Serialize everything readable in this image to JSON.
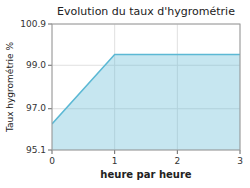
{
  "chart_data": {
    "type": "area",
    "title": "Evolution du taux d'hygrométrie",
    "x_label": "heure par heure",
    "y_label": "Taux hygrométrie %",
    "x": [
      0,
      1,
      3
    ],
    "values": [
      96.3,
      99.5,
      99.5
    ],
    "color": "#5bb8d4",
    "xlim": [
      0,
      3
    ],
    "ylim": [
      95.1,
      100.9
    ],
    "xticks": [
      0,
      1,
      2,
      3
    ],
    "yticks": [
      95.1,
      {
        "value": 97.0,
        "label": "97.0"
      },
      {
        "value": 99.0,
        "label": "99.0"
      },
      100.9
    ],
    "grid": true
  }
}
